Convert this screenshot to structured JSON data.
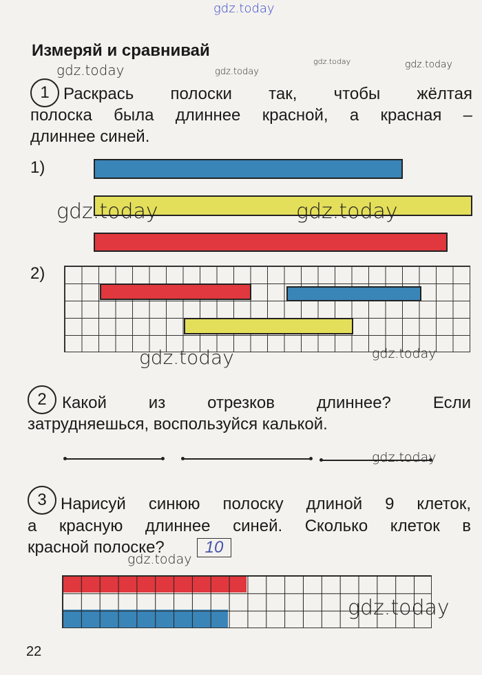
{
  "watermark": "gdz.today",
  "title": "Измеряй и сравнивай",
  "task1": {
    "number": "1",
    "lines": [
      "Раскрась полоски так, чтобы жёлтая",
      "полоска была длиннее красной, а красная –",
      "длиннее синей."
    ],
    "part1_label": "1)",
    "part2_label": "2)"
  },
  "task2": {
    "number": "2",
    "lines": [
      "Какой из отрезков длиннее? Если",
      "затрудняешься, воспользуйся калькой."
    ]
  },
  "task3": {
    "number": "3",
    "lines": [
      "Нарисуй синюю полоску длиной 9 клеток,",
      "а красную длиннее синей. Сколько клеток в"
    ],
    "last_line": "красной полоске?",
    "answer": "10",
    "blue_cells": 9,
    "red_cells": 10
  },
  "page_number": "22",
  "colors": {
    "red": "#e0383e",
    "blue": "#3a85b8",
    "yellow": "#e4df5a"
  }
}
